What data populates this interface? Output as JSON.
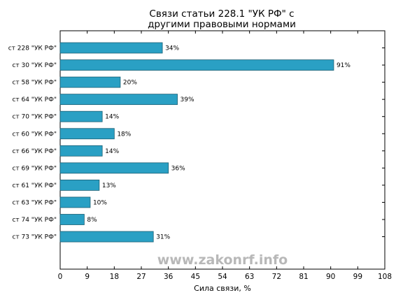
{
  "chart_data": {
    "type": "bar",
    "orientation": "horizontal",
    "title": [
      "Связи статьи 228.1 \"УК РФ\" с",
      "другими правовыми нормами"
    ],
    "xlabel": "Сила связи, %",
    "ylabel": "",
    "xlim": [
      0,
      108
    ],
    "xticks": [
      0,
      9,
      18,
      27,
      36,
      45,
      54,
      63,
      72,
      81,
      90,
      99,
      108
    ],
    "categories": [
      "ст 228 \"УК РФ\"",
      "ст 30 \"УК РФ\"",
      "ст 58 \"УК РФ\"",
      "ст 64 \"УК РФ\"",
      "ст 70 \"УК РФ\"",
      "ст 60 \"УК РФ\"",
      "ст 66 \"УК РФ\"",
      "ст 69 \"УК РФ\"",
      "ст 61 \"УК РФ\"",
      "ст 63 \"УК РФ\"",
      "ст 74 \"УК РФ\"",
      "ст 73 \"УК РФ\""
    ],
    "values": [
      34,
      91,
      20,
      39,
      14,
      18,
      14,
      36,
      13,
      10,
      8,
      31
    ],
    "data_labels": [
      "34%",
      "91%",
      "20%",
      "39%",
      "14%",
      "18%",
      "14%",
      "36%",
      "13%",
      "10%",
      "8%",
      "31%"
    ],
    "bar_color": "#2aa0c4",
    "grid": false,
    "watermark": "www.zakonrf.info"
  }
}
